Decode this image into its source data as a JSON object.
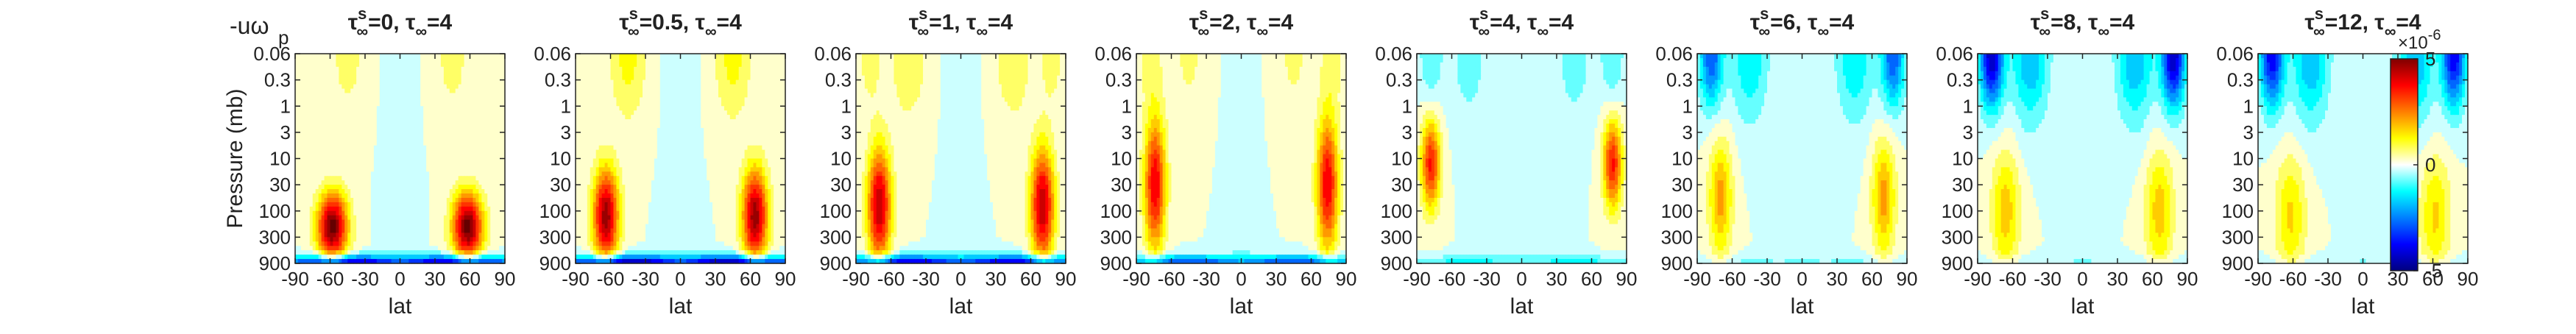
{
  "figure": {
    "corner_label": "-uω",
    "corner_label_sub": "p"
  },
  "chart_data": [
    {
      "type": "heatmap",
      "title": "τ∞s=0, τ∞=4",
      "title_parts": {
        "base": "τ",
        "sub": "∞",
        "sup": "s",
        "rest": "=0, τ",
        "sub2": "∞",
        "rest2": "=4"
      },
      "xlabel": "lat",
      "ylabel": "Pressure (mb)",
      "xticks": [
        "-90",
        "-60",
        "-30",
        "0",
        "30",
        "60",
        "90"
      ],
      "yticks": [
        "0.06",
        "0.3",
        "1",
        "3",
        "10",
        "30",
        "100",
        "300",
        "900"
      ],
      "xlim": [
        -90,
        90
      ],
      "peak": 5.2,
      "upper": 0.0,
      "surface": -4.5,
      "peak_lat": 58,
      "peak_level": 6.6,
      "width": 13,
      "spread": 1.3,
      "top": 0.7
    },
    {
      "type": "heatmap",
      "title": "τ∞s=0.5, τ∞=4",
      "title_parts": {
        "base": "τ",
        "sub": "∞",
        "sup": "s",
        "rest": "=0.5, τ",
        "sub2": "∞",
        "rest2": "=4"
      },
      "xlabel": "lat",
      "ylabel": "",
      "xticks": [
        "-90",
        "-60",
        "-30",
        "0",
        "30",
        "60",
        "90"
      ],
      "yticks": [
        "0.06",
        "0.3",
        "1",
        "3",
        "10",
        "30",
        "100",
        "300",
        "900"
      ],
      "xlim": [
        -90,
        90
      ],
      "peak": 4.8,
      "upper": 0.4,
      "surface": -4.8,
      "peak_lat": 64,
      "peak_level": 6.2,
      "width": 11,
      "spread": 1.8,
      "top": 1.2
    },
    {
      "type": "heatmap",
      "title": "τ∞s=1, τ∞=4",
      "title_parts": {
        "base": "τ",
        "sub": "∞",
        "sup": "s",
        "rest": "=1, τ",
        "sub2": "∞",
        "rest2": "=4"
      },
      "xlabel": "lat",
      "ylabel": "",
      "xticks": [
        "-90",
        "-60",
        "-30",
        "0",
        "30",
        "60",
        "90"
      ],
      "yticks": [
        "0.06",
        "0.3",
        "1",
        "3",
        "10",
        "30",
        "100",
        "300",
        "900"
      ],
      "xlim": [
        -90,
        90
      ],
      "peak": 4.5,
      "upper": 0.8,
      "surface": -4.2,
      "peak_lat": 70,
      "peak_level": 5.8,
      "width": 10,
      "spread": 2.2,
      "top": 1.0
    },
    {
      "type": "heatmap",
      "title": "τ∞s=2, τ∞=4",
      "title_parts": {
        "base": "τ",
        "sub": "∞",
        "sup": "s",
        "rest": "=2, τ",
        "sub2": "∞",
        "rest2": "=4"
      },
      "xlabel": "lat",
      "ylabel": "",
      "xticks": [
        "-90",
        "-60",
        "-30",
        "0",
        "30",
        "60",
        "90"
      ],
      "yticks": [
        "0.06",
        "0.3",
        "1",
        "3",
        "10",
        "30",
        "100",
        "300",
        "900"
      ],
      "xlim": [
        -90,
        90
      ],
      "peak": 4.0,
      "upper": 0.8,
      "surface": -3.2,
      "peak_lat": 74,
      "peak_level": 5.0,
      "width": 9,
      "spread": 2.5,
      "top": 0.6
    },
    {
      "type": "heatmap",
      "title": "τ∞s=4, τ∞=4",
      "title_parts": {
        "base": "τ",
        "sub": "∞",
        "sup": "s",
        "rest": "=4, τ",
        "sub2": "∞",
        "rest2": "=4"
      },
      "xlabel": "lat",
      "ylabel": "",
      "xticks": [
        "-90",
        "-60",
        "-30",
        "0",
        "30",
        "60",
        "90"
      ],
      "yticks": [
        "0.06",
        "0.3",
        "1",
        "3",
        "10",
        "30",
        "100",
        "300",
        "900"
      ],
      "xlim": [
        -90,
        90
      ],
      "peak": 3.6,
      "upper": -1.0,
      "surface": -1.2,
      "peak_lat": 78,
      "peak_level": 4.2,
      "width": 8,
      "spread": 1.7,
      "top": -0.8
    },
    {
      "type": "heatmap",
      "title": "τ∞s=6, τ∞=4",
      "title_parts": {
        "base": "τ",
        "sub": "∞",
        "sup": "s",
        "rest": "=6, τ",
        "sub2": "∞",
        "rest2": "=4"
      },
      "xlabel": "lat",
      "ylabel": "",
      "xticks": [
        "-90",
        "-60",
        "-30",
        "0",
        "30",
        "60",
        "90"
      ],
      "yticks": [
        "0.06",
        "0.3",
        "1",
        "3",
        "10",
        "30",
        "100",
        "300",
        "900"
      ],
      "xlim": [
        -90,
        90
      ],
      "peak": 2.2,
      "upper": -3.0,
      "surface": -0.6,
      "peak_lat": 70,
      "peak_level": 5.5,
      "width": 10,
      "spread": 2.2,
      "top": -1.5
    },
    {
      "type": "heatmap",
      "title": "τ∞s=8, τ∞=4",
      "title_parts": {
        "base": "τ",
        "sub": "∞",
        "sup": "s",
        "rest": "=8, τ",
        "sub2": "∞",
        "rest2": "=4"
      },
      "xlabel": "lat",
      "ylabel": "",
      "xticks": [
        "-90",
        "-60",
        "-30",
        "0",
        "30",
        "60",
        "90"
      ],
      "yticks": [
        "0.06",
        "0.3",
        "1",
        "3",
        "10",
        "30",
        "100",
        "300",
        "900"
      ],
      "xlim": [
        -90,
        90
      ],
      "peak": 1.8,
      "upper": -4.5,
      "surface": -0.5,
      "peak_lat": 66,
      "peak_level": 6.0,
      "width": 12,
      "spread": 2.3,
      "top": -2.0
    },
    {
      "type": "heatmap",
      "title": "τ∞s=12, τ∞=4",
      "title_parts": {
        "base": "τ",
        "sub": "∞",
        "sup": "s",
        "rest": "=12, τ",
        "sub2": "∞",
        "rest2": "=4"
      },
      "xlabel": "lat",
      "ylabel": "",
      "xticks": [
        "-90",
        "-60",
        "-30",
        "0",
        "30",
        "60",
        "90"
      ],
      "yticks": [
        "0.06",
        "0.3",
        "1",
        "3",
        "10",
        "30",
        "100",
        "300",
        "900"
      ],
      "xlim": [
        -90,
        90
      ],
      "peak": 1.6,
      "upper": -4.0,
      "surface": -0.4,
      "peak_lat": 62,
      "peak_level": 6.2,
      "width": 13,
      "spread": 2.3,
      "top": -2.0
    }
  ],
  "colorbar": {
    "exponent": "×10",
    "exponent_power": "-6",
    "ticks": [
      "5",
      "0",
      "-5"
    ],
    "range": [
      -5,
      5
    ],
    "colormap": [
      "#00007f",
      "#0000ff",
      "#007fff",
      "#00ffff",
      "#ffffff",
      "#ffff00",
      "#ff7f00",
      "#ff0000",
      "#7f0000"
    ]
  }
}
